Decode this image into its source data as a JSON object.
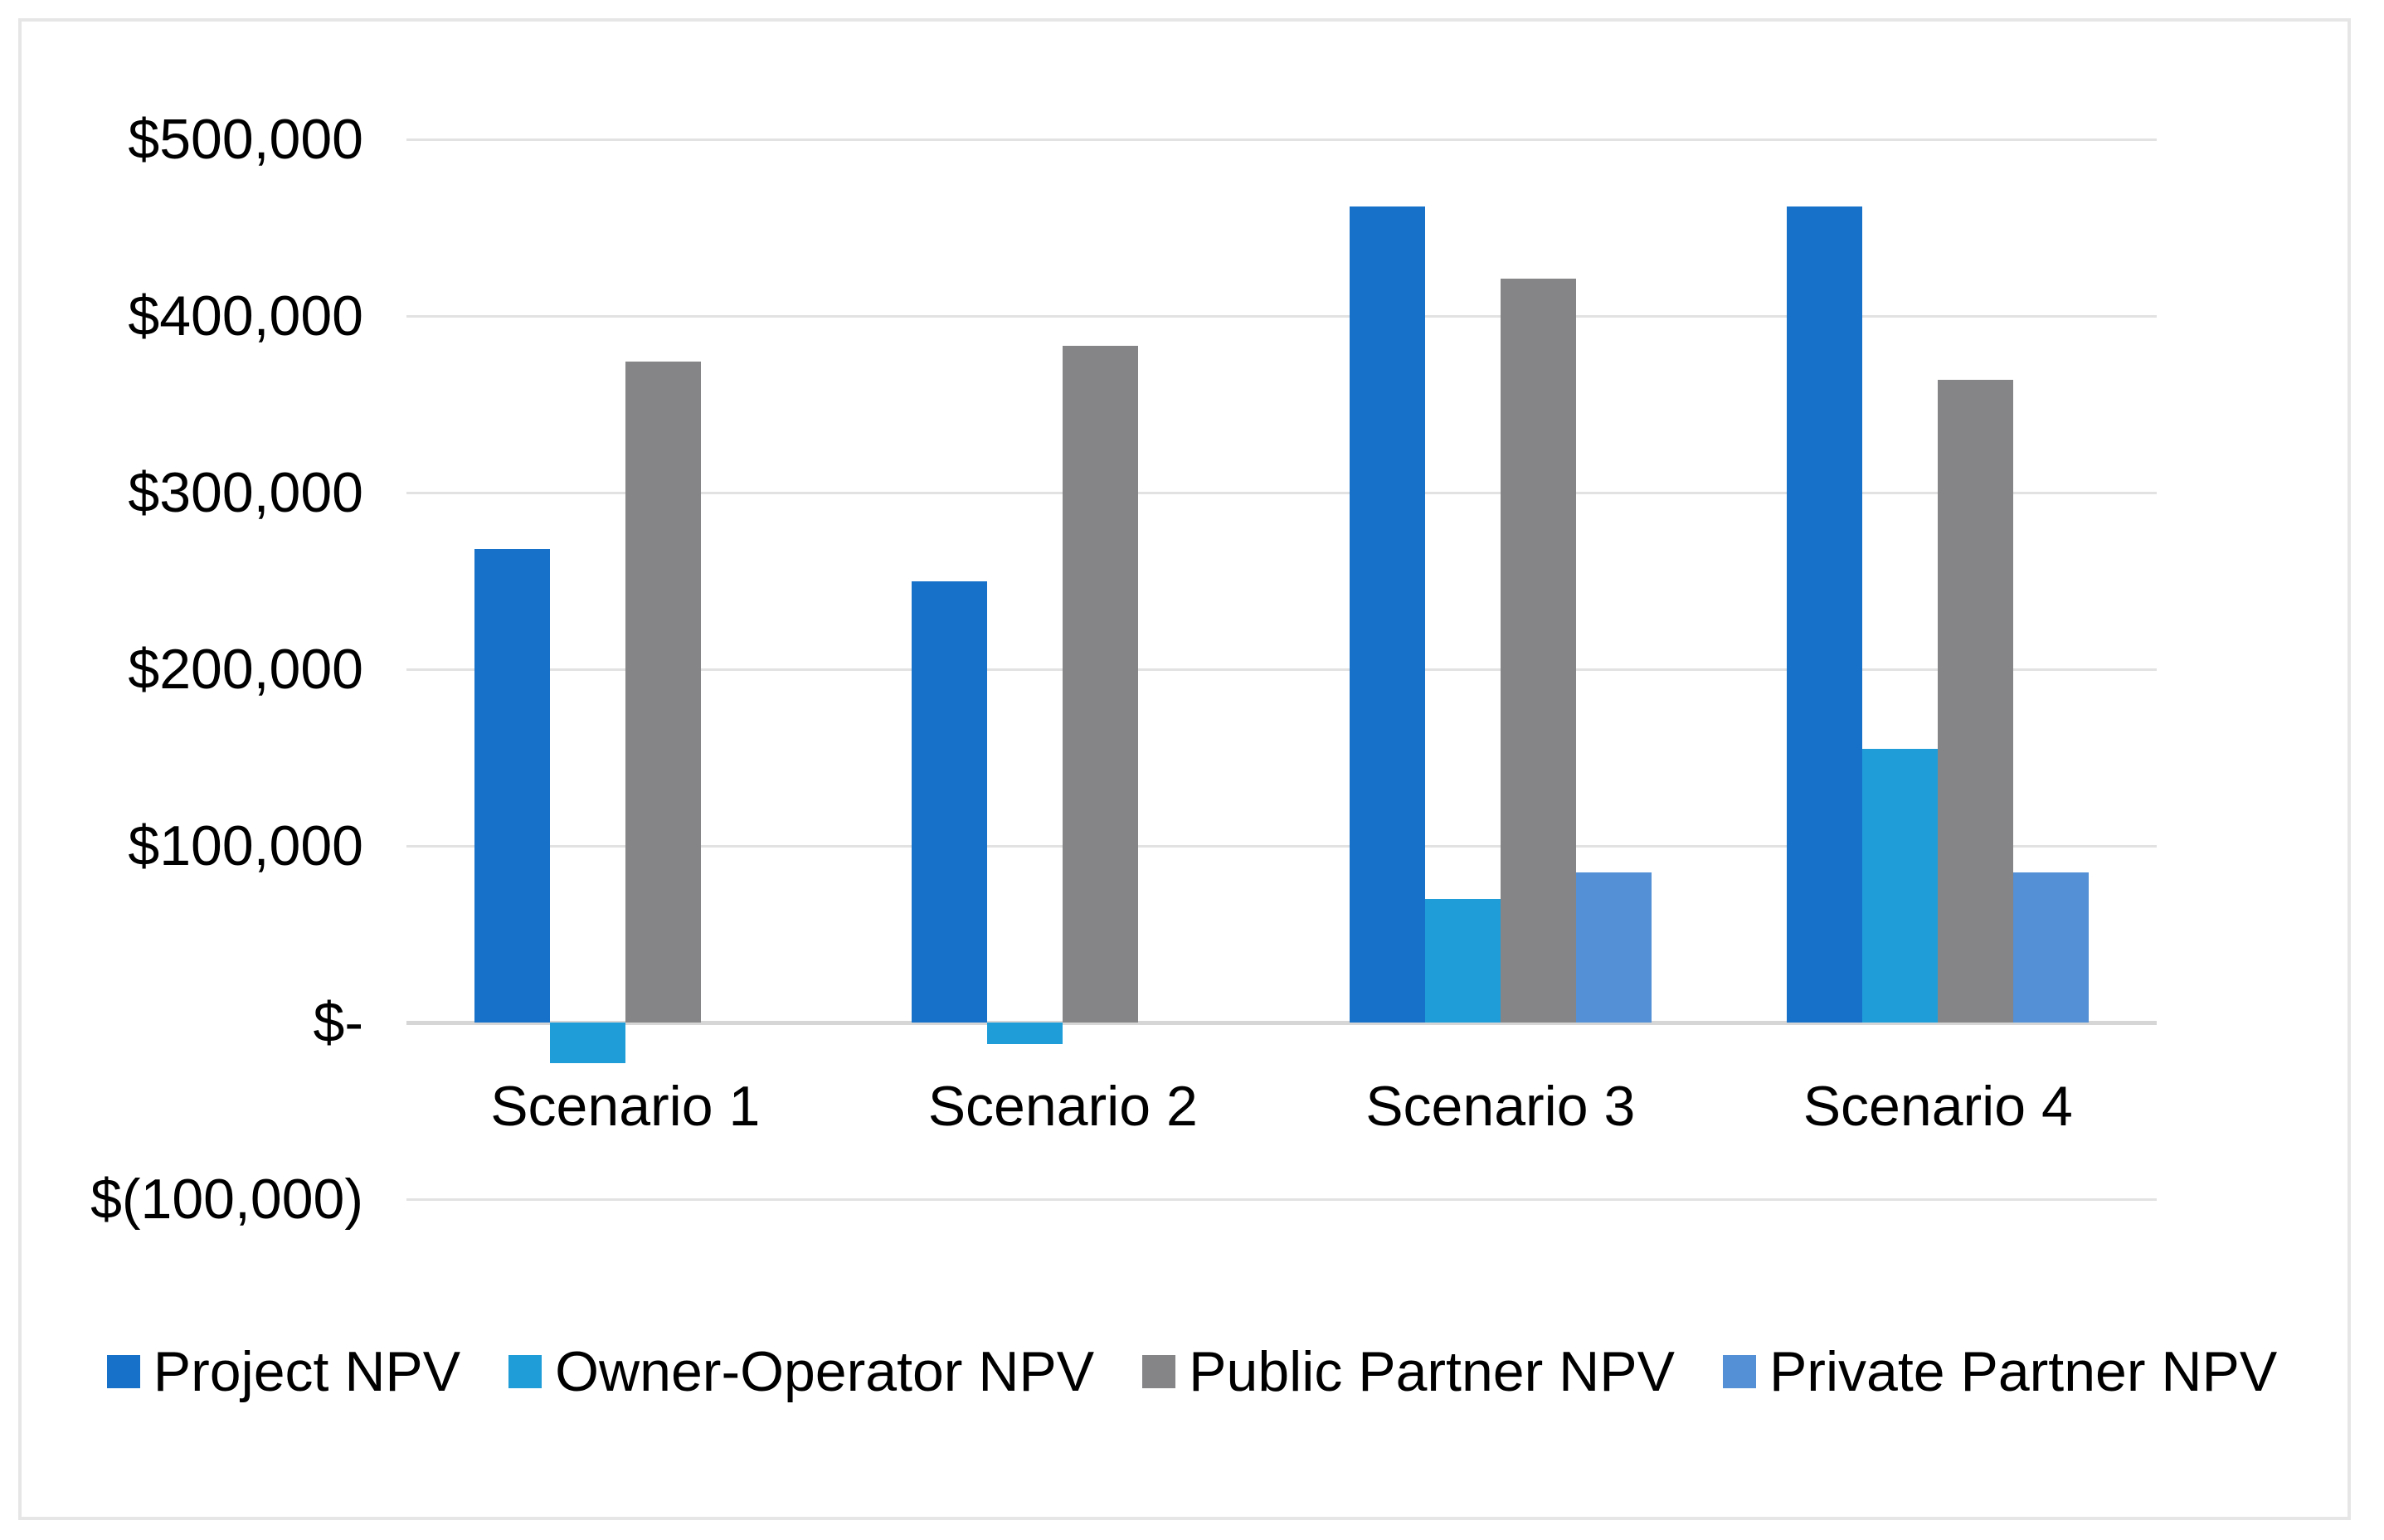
{
  "chart_data": {
    "type": "bar",
    "title": "",
    "xlabel": "",
    "ylabel": "",
    "categories": [
      "Scenario 1",
      "Scenario 2",
      "Scenario 3",
      "Scenario 4"
    ],
    "series": [
      {
        "name": "Project NPV",
        "color": "#1771C8",
        "values": [
          268000,
          250000,
          462000,
          462000
        ]
      },
      {
        "name": "Owner-Operator NPV",
        "color": "#1E9DD9",
        "values": [
          -23000,
          -12000,
          70000,
          155000
        ]
      },
      {
        "name": "Public Partner NPV",
        "color": "#858587",
        "values": [
          374000,
          383000,
          421000,
          364000
        ]
      },
      {
        "name": "Private Partner NPV",
        "color": "#5390D5",
        "values": [
          0,
          0,
          85000,
          85000
        ]
      }
    ],
    "ylim": [
      -100000,
      500000
    ],
    "y_tick_step": 100000,
    "y_tick_values": [
      500000,
      400000,
      300000,
      200000,
      100000,
      0,
      -100000
    ],
    "y_tick_labels": [
      "$500,000",
      "$400,000",
      "$300,000",
      "$200,000",
      "$100,000",
      "$-",
      "$(100,000)"
    ],
    "grid": "horizontal",
    "legend_position": "bottom"
  },
  "style": {
    "background": "#FFFFFF",
    "frame_border_color": "#E6E6E6",
    "gridline_color": "#E2E2E2",
    "zero_axis_color": "#D6D6D6",
    "text_color": "#000000"
  }
}
